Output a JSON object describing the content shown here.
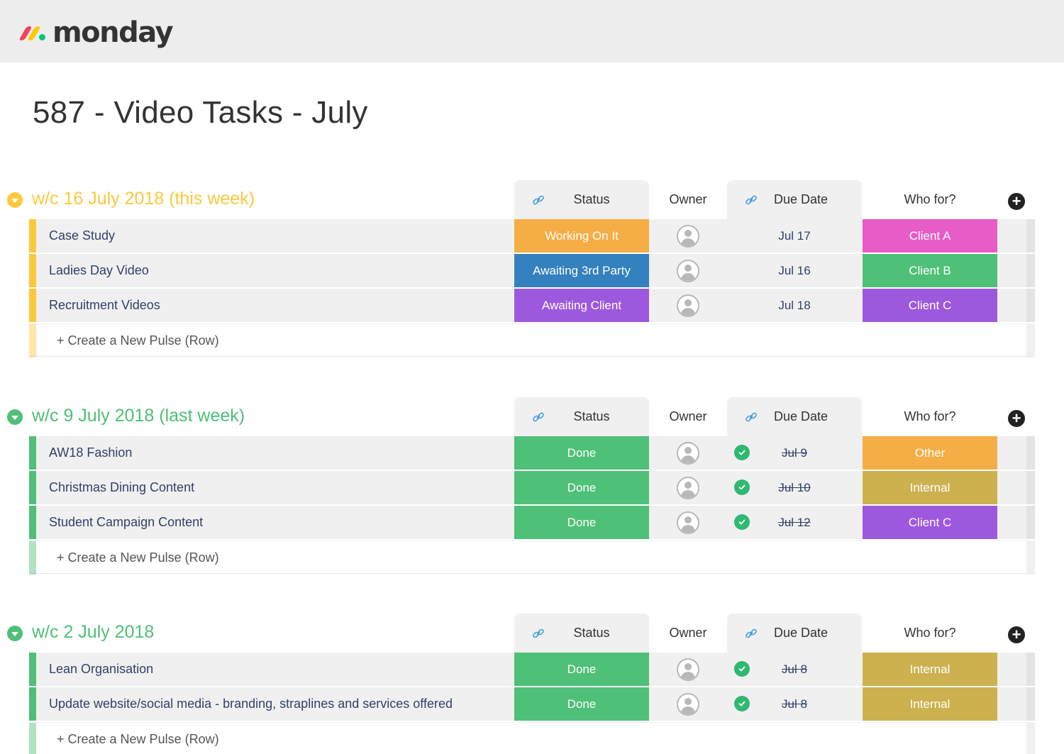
{
  "app": {
    "logo_text": "monday"
  },
  "page": {
    "title": "587 - Video Tasks - July"
  },
  "columns": {
    "status": "Status",
    "owner": "Owner",
    "due_date": "Due Date",
    "who_for": "Who for?"
  },
  "new_row_label": "+ Create a New Pulse (Row)",
  "colors": {
    "group_yellow": "#fdc83c",
    "group_green": "#4fc077",
    "working": "#f4ae45",
    "awaiting_3rd": "#3381bf",
    "awaiting_client": "#9d59de",
    "done": "#4fc077",
    "client_a": "#e85cc7",
    "client_b": "#4fc077",
    "client_c": "#9d59de",
    "other": "#f4ae45",
    "internal": "#cdb14f"
  },
  "groups": [
    {
      "title": "w/c 16 July 2018 (this week)",
      "color": "#fdc83c",
      "rows": [
        {
          "name": "Case Study",
          "status": "Working On It",
          "status_color": "#f4ae45",
          "date": "Jul 17",
          "done": false,
          "who": "Client A",
          "who_color": "#e85cc7"
        },
        {
          "name": "Ladies Day Video",
          "status": "Awaiting 3rd Party",
          "status_color": "#3381bf",
          "date": "Jul 16",
          "done": false,
          "who": "Client B",
          "who_color": "#4fc077"
        },
        {
          "name": "Recruitment Videos",
          "status": "Awaiting Client",
          "status_color": "#9d59de",
          "date": "Jul 18",
          "done": false,
          "who": "Client C",
          "who_color": "#9d59de"
        }
      ]
    },
    {
      "title": "w/c 9 July 2018 (last week)",
      "color": "#4fc077",
      "rows": [
        {
          "name": "AW18 Fashion",
          "status": "Done",
          "status_color": "#4fc077",
          "date": "Jul 9",
          "done": true,
          "who": "Other",
          "who_color": "#f4ae45"
        },
        {
          "name": "Christmas Dining Content",
          "status": "Done",
          "status_color": "#4fc077",
          "date": "Jul 10",
          "done": true,
          "who": "Internal",
          "who_color": "#cdb14f"
        },
        {
          "name": "Student Campaign Content",
          "status": "Done",
          "status_color": "#4fc077",
          "date": "Jul 12",
          "done": true,
          "who": "Client C",
          "who_color": "#9d59de"
        }
      ]
    },
    {
      "title": "w/c 2 July 2018",
      "color": "#4fc077",
      "rows": [
        {
          "name": "Lean Organisation",
          "status": "Done",
          "status_color": "#4fc077",
          "date": "Jul 8",
          "done": true,
          "who": "Internal",
          "who_color": "#cdb14f"
        },
        {
          "name": "Update website/social media - branding, straplines and services offered",
          "status": "Done",
          "status_color": "#4fc077",
          "date": "Jul 8",
          "done": true,
          "who": "Internal",
          "who_color": "#cdb14f"
        }
      ]
    }
  ]
}
